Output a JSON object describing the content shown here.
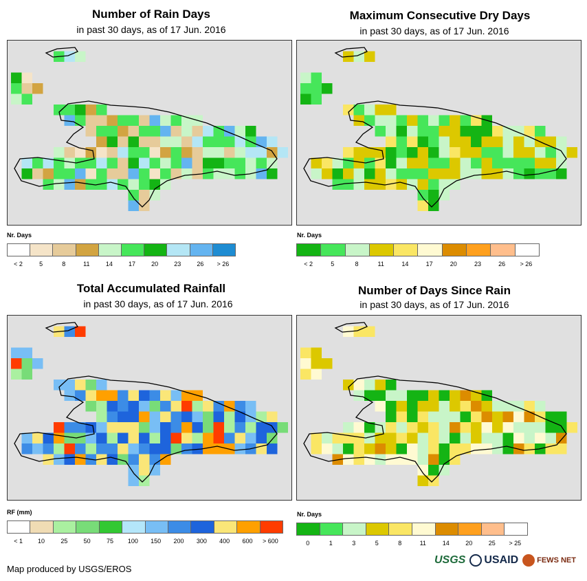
{
  "panels": [
    {
      "title": "Number of Rain Days",
      "subtitle": "in past 30 days, as of 17 Jun. 2016",
      "legend_title": "Nr. Days",
      "legend_labels": [
        "< 2",
        "5",
        "8",
        "11",
        "14",
        "17",
        "20",
        "23",
        "26",
        "> 26"
      ],
      "legend_colors": [
        "#ffffff",
        "#f5e4c8",
        "#e6cb9a",
        "#d2a441",
        "#c8f5c8",
        "#46e65a",
        "#14b414",
        "#b4e6f5",
        "#64b4f0",
        "#1e8cd2"
      ]
    },
    {
      "title": "Maximum Consecutive Dry Days",
      "subtitle": "in past 30 days, as of 17 Jun. 2016",
      "legend_title": "Nr. Days",
      "legend_labels": [
        "< 2",
        "5",
        "8",
        "11",
        "14",
        "17",
        "20",
        "23",
        "26",
        "> 26"
      ],
      "legend_colors": [
        "#14b414",
        "#46e65a",
        "#c8f5c8",
        "#dcc800",
        "#fae664",
        "#fffad2",
        "#dc8c00",
        "#ffa01e",
        "#ffbe8c",
        "#ffffff"
      ]
    },
    {
      "title": "Total Accumulated Rainfall",
      "subtitle": "in past 30 days, as of 17 Jun. 2016",
      "legend_title": "RF (mm)",
      "legend_labels": [
        "< 1",
        "10",
        "25",
        "50",
        "75",
        "100",
        "150",
        "200",
        "300",
        "400",
        "600",
        "> 600"
      ],
      "legend_colors": [
        "#ffffff",
        "#f0dcb4",
        "#aaf0a0",
        "#78dc78",
        "#32c832",
        "#b4e6fa",
        "#78bef5",
        "#3c8ce6",
        "#1e64dc",
        "#fae678",
        "#ffa000",
        "#ff3c00"
      ]
    },
    {
      "title": "Number of Days Since Rain",
      "subtitle": "in past 30 days, as of 17 Jun. 2016",
      "legend_title": "Nr. Days",
      "legend_labels": [
        "0",
        "1",
        "3",
        "5",
        "8",
        "11",
        "14",
        "20",
        "25",
        "> 25"
      ],
      "legend_colors": [
        "#14b414",
        "#46e65a",
        "#c8f5c8",
        "#dcc800",
        "#fae664",
        "#fffad2",
        "#dc8c00",
        "#ffa01e",
        "#ffbe8c",
        "#ffffff"
      ]
    }
  ],
  "footer": {
    "credit": "Map produced by USGS/EROS",
    "logo_usgs": "USGS",
    "logo_usaid": "USAID",
    "logo_fews": "FEWS NET"
  },
  "colors": {
    "map_bg": "#e0e0e0",
    "border": "#000000"
  }
}
